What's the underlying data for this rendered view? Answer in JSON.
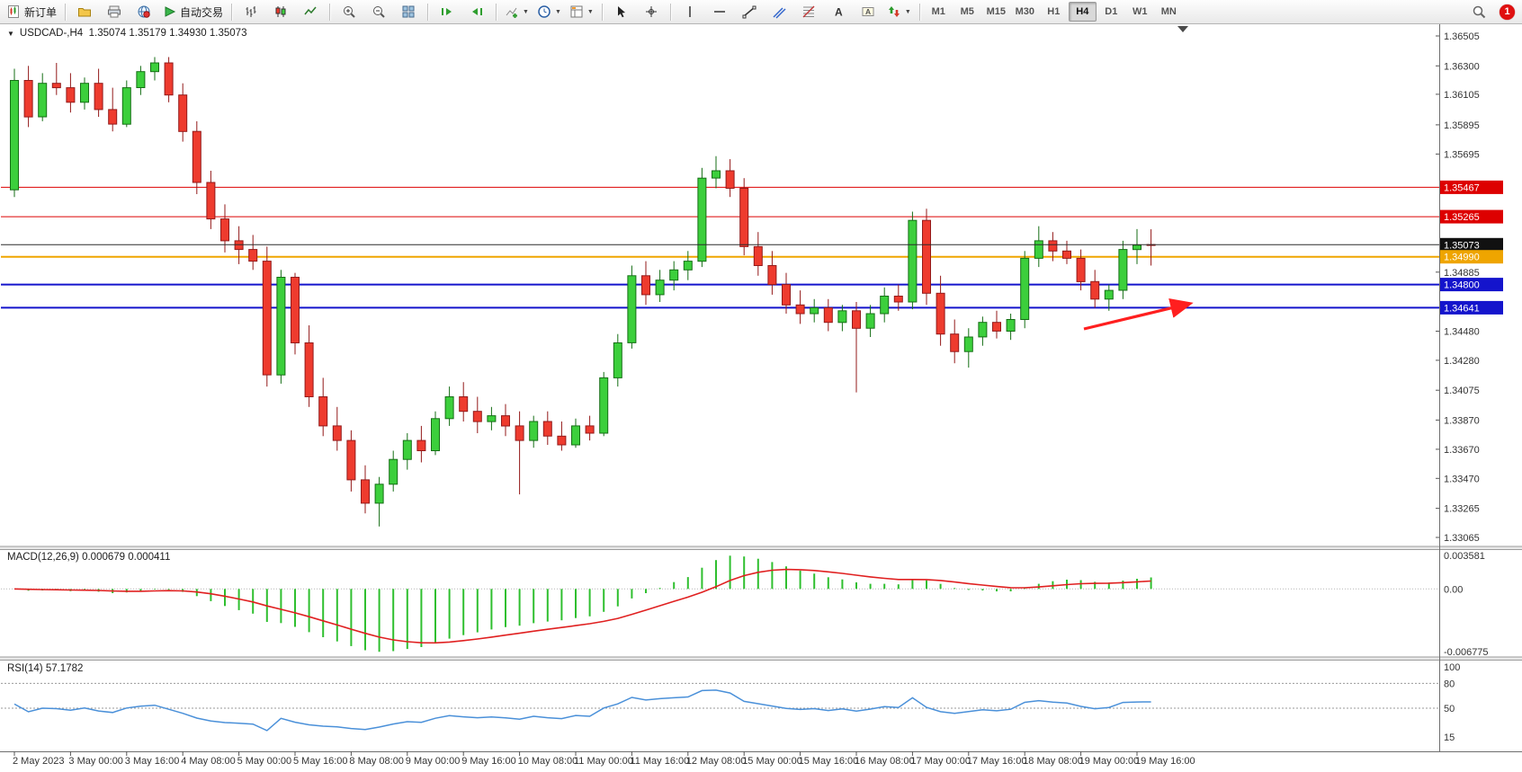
{
  "toolbar": {
    "new_order_label": "新订单",
    "autotrading_label": "自动交易",
    "timeframes": [
      "M1",
      "M5",
      "M15",
      "M30",
      "H1",
      "H4",
      "D1",
      "W1",
      "MN"
    ],
    "active_timeframe": "H4",
    "notification_count": "1"
  },
  "chart": {
    "header": "USDCAD-,H4  1.35074 1.35179 1.34930 1.35073",
    "price_axis_ticks": [
      "1.36505",
      "1.36300",
      "1.36105",
      "1.35895",
      "1.35695",
      "1.34885",
      "1.34480",
      "1.34280",
      "1.34075",
      "1.33870",
      "1.33670",
      "1.33470",
      "1.33265",
      "1.33065"
    ],
    "price_tags": [
      {
        "label": "1.35467",
        "price": 1.35467,
        "color": "#dd0000",
        "type": "resistance-1"
      },
      {
        "label": "1.35265",
        "price": 1.35265,
        "color": "#dd0000",
        "type": "resistance-2"
      },
      {
        "label": "1.35073",
        "price": 1.35073,
        "color": "#111111",
        "type": "bid"
      },
      {
        "label": "1.34990",
        "price": 1.3499,
        "color": "#efa500",
        "type": "pivot"
      },
      {
        "label": "1.34800",
        "price": 1.348,
        "color": "#1414cc",
        "type": "support-1"
      },
      {
        "label": "1.34641",
        "price": 1.34641,
        "color": "#1414cc",
        "type": "support-2"
      }
    ],
    "hlines": [
      {
        "price": 1.35467,
        "color": "#dd0000",
        "width": 1
      },
      {
        "price": 1.35265,
        "color": "#dd0000",
        "width": 1
      },
      {
        "price": 1.3499,
        "color": "#efa500",
        "width": 2
      },
      {
        "price": 1.348,
        "color": "#1414cc",
        "width": 2
      },
      {
        "price": 1.34641,
        "color": "#1414cc",
        "width": 2
      }
    ],
    "bid_line": {
      "price": 1.35073,
      "color": "#2b2b2b"
    },
    "annotation_arrow": {
      "color": "#ff1f1f"
    },
    "time_axis": [
      "2 May 2023",
      "3 May 00:00",
      "3 May 16:00",
      "4 May 08:00",
      "5 May 00:00",
      "5 May 16:00",
      "8 May 08:00",
      "9 May 00:00",
      "9 May 16:00",
      "10 May 08:00",
      "11 May 00:00",
      "11 May 16:00",
      "12 May 08:00",
      "15 May 00:00",
      "15 May 16:00",
      "16 May 08:00",
      "17 May 00:00",
      "17 May 16:00",
      "18 May 08:00",
      "19 May 00:00",
      "19 May 16:00"
    ]
  },
  "chart_data": {
    "type": "candlestick",
    "symbol": "USDCAD-",
    "timeframe": "H4",
    "ylim": [
      1.33065,
      1.36505
    ],
    "up_color": "#3ccf3c",
    "down_color": "#ee3b2e",
    "candles": [
      [
        1.3545,
        1.3628,
        1.354,
        1.362
      ],
      [
        1.362,
        1.363,
        1.3588,
        1.3595
      ],
      [
        1.3595,
        1.3625,
        1.3592,
        1.3618
      ],
      [
        1.3618,
        1.3632,
        1.361,
        1.3615
      ],
      [
        1.3615,
        1.3625,
        1.3598,
        1.3605
      ],
      [
        1.3605,
        1.3622,
        1.36,
        1.3618
      ],
      [
        1.3618,
        1.3628,
        1.3595,
        1.36
      ],
      [
        1.36,
        1.3615,
        1.3585,
        1.359
      ],
      [
        1.359,
        1.362,
        1.3588,
        1.3615
      ],
      [
        1.3615,
        1.363,
        1.361,
        1.3626
      ],
      [
        1.3626,
        1.3636,
        1.362,
        1.3632
      ],
      [
        1.3632,
        1.3636,
        1.3605,
        1.361
      ],
      [
        1.361,
        1.3618,
        1.3578,
        1.3585
      ],
      [
        1.3585,
        1.3592,
        1.3542,
        1.355
      ],
      [
        1.355,
        1.3558,
        1.3518,
        1.3525
      ],
      [
        1.3525,
        1.3535,
        1.3502,
        1.351
      ],
      [
        1.351,
        1.352,
        1.3494,
        1.3504
      ],
      [
        1.3504,
        1.3514,
        1.349,
        1.3496
      ],
      [
        1.3496,
        1.3506,
        1.341,
        1.3418
      ],
      [
        1.3418,
        1.349,
        1.3412,
        1.3485
      ],
      [
        1.3485,
        1.3488,
        1.3432,
        1.344
      ],
      [
        1.344,
        1.3452,
        1.3396,
        1.3403
      ],
      [
        1.3403,
        1.3416,
        1.3376,
        1.3383
      ],
      [
        1.3383,
        1.3396,
        1.3366,
        1.3373
      ],
      [
        1.3373,
        1.338,
        1.3338,
        1.3346
      ],
      [
        1.3346,
        1.3356,
        1.3323,
        1.333
      ],
      [
        1.333,
        1.3348,
        1.3314,
        1.3343
      ],
      [
        1.3343,
        1.3366,
        1.3338,
        1.336
      ],
      [
        1.336,
        1.3378,
        1.3353,
        1.3373
      ],
      [
        1.3373,
        1.3383,
        1.3358,
        1.3366
      ],
      [
        1.3366,
        1.3393,
        1.3363,
        1.3388
      ],
      [
        1.3388,
        1.341,
        1.3383,
        1.3403
      ],
      [
        1.3403,
        1.3413,
        1.3386,
        1.3393
      ],
      [
        1.3393,
        1.3403,
        1.3378,
        1.3386
      ],
      [
        1.3386,
        1.3396,
        1.338,
        1.339
      ],
      [
        1.339,
        1.3398,
        1.3376,
        1.3383
      ],
      [
        1.3383,
        1.3393,
        1.3336,
        1.3373
      ],
      [
        1.3373,
        1.339,
        1.3368,
        1.3386
      ],
      [
        1.3386,
        1.3393,
        1.337,
        1.3376
      ],
      [
        1.3376,
        1.3386,
        1.3366,
        1.337
      ],
      [
        1.337,
        1.3388,
        1.3368,
        1.3383
      ],
      [
        1.3383,
        1.339,
        1.3373,
        1.3378
      ],
      [
        1.3378,
        1.342,
        1.3376,
        1.3416
      ],
      [
        1.3416,
        1.3446,
        1.341,
        1.344
      ],
      [
        1.344,
        1.3493,
        1.3436,
        1.3486
      ],
      [
        1.3486,
        1.3496,
        1.3466,
        1.3473
      ],
      [
        1.3473,
        1.349,
        1.3468,
        1.3483
      ],
      [
        1.3483,
        1.3496,
        1.3476,
        1.349
      ],
      [
        1.349,
        1.3503,
        1.3483,
        1.3496
      ],
      [
        1.3496,
        1.356,
        1.3492,
        1.3553
      ],
      [
        1.3553,
        1.3568,
        1.3546,
        1.3558
      ],
      [
        1.3558,
        1.3566,
        1.354,
        1.3546
      ],
      [
        1.3546,
        1.3553,
        1.35,
        1.3506
      ],
      [
        1.3506,
        1.3516,
        1.3486,
        1.3493
      ],
      [
        1.3493,
        1.3503,
        1.3473,
        1.348
      ],
      [
        1.348,
        1.3488,
        1.346,
        1.3466
      ],
      [
        1.3466,
        1.3476,
        1.3453,
        1.346
      ],
      [
        1.346,
        1.347,
        1.3454,
        1.3464
      ],
      [
        1.3464,
        1.347,
        1.3448,
        1.3454
      ],
      [
        1.3454,
        1.3466,
        1.3448,
        1.3462
      ],
      [
        1.3462,
        1.3468,
        1.3406,
        1.345
      ],
      [
        1.345,
        1.3466,
        1.3444,
        1.346
      ],
      [
        1.346,
        1.3478,
        1.3454,
        1.3472
      ],
      [
        1.3472,
        1.348,
        1.3462,
        1.3468
      ],
      [
        1.3468,
        1.353,
        1.3463,
        1.3524
      ],
      [
        1.3524,
        1.3532,
        1.3466,
        1.3474
      ],
      [
        1.3474,
        1.3486,
        1.3438,
        1.3446
      ],
      [
        1.3446,
        1.3456,
        1.3426,
        1.3434
      ],
      [
        1.3434,
        1.345,
        1.3423,
        1.3444
      ],
      [
        1.3444,
        1.3458,
        1.3438,
        1.3454
      ],
      [
        1.3454,
        1.3462,
        1.3443,
        1.3448
      ],
      [
        1.3448,
        1.346,
        1.3442,
        1.3456
      ],
      [
        1.3456,
        1.3503,
        1.345,
        1.3498
      ],
      [
        1.3498,
        1.352,
        1.3492,
        1.351
      ],
      [
        1.351,
        1.3516,
        1.3496,
        1.3503
      ],
      [
        1.3503,
        1.351,
        1.3494,
        1.3498
      ],
      [
        1.3498,
        1.3504,
        1.3476,
        1.3482
      ],
      [
        1.3482,
        1.349,
        1.3464,
        1.347
      ],
      [
        1.347,
        1.348,
        1.3462,
        1.3476
      ],
      [
        1.3476,
        1.351,
        1.347,
        1.3504
      ],
      [
        1.3504,
        1.3518,
        1.3494,
        1.3507
      ],
      [
        1.35074,
        1.35179,
        1.3493,
        1.35073
      ]
    ]
  },
  "macd": {
    "header": "MACD(12,26,9) 0.000679 0.000411",
    "params": [
      12,
      26,
      9
    ],
    "axis_labels": [
      "0.003581",
      "0.00",
      "-0.006775"
    ],
    "hist_color": "#2fbf2f",
    "signal_color": "#e02020"
  },
  "rsi": {
    "header": "RSI(14) 57.1782",
    "period": 14,
    "axis_labels": [
      "100",
      "80",
      "50",
      "15"
    ],
    "levels": [
      80,
      50
    ],
    "line_color": "#4a90d9"
  }
}
